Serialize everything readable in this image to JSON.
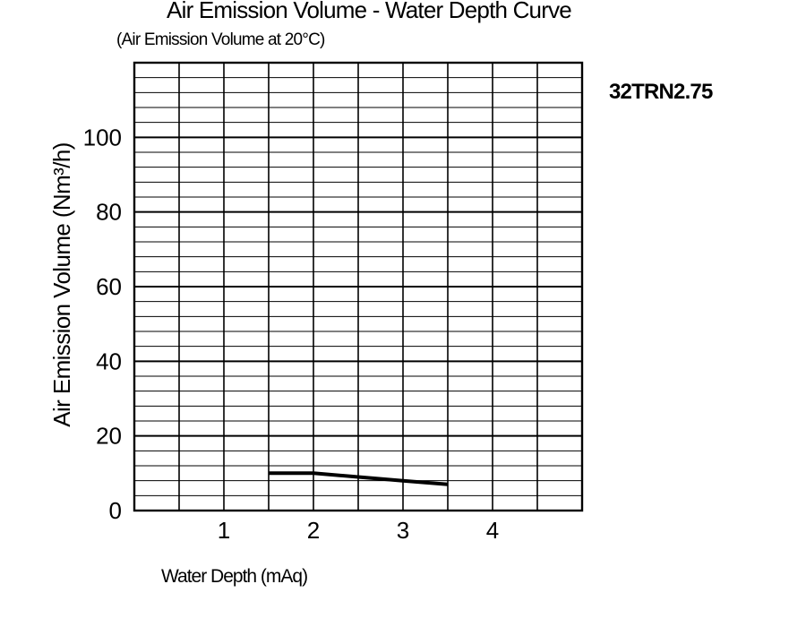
{
  "chart_data": {
    "type": "line",
    "title": "Air Emission Volume - Water Depth Curve",
    "subtitle": "(Air Emission Volume at 20°C)",
    "model_label": "32TRN2.75",
    "xlabel": "Water Depth (mAq)",
    "ylabel": "Air Emission Volume (Nm³/h)",
    "xlim": [
      0,
      5
    ],
    "ylim": [
      0,
      120
    ],
    "x_ticks": [
      1,
      2,
      3,
      4
    ],
    "y_ticks": [
      0,
      20,
      40,
      60,
      80,
      100
    ],
    "grid": true,
    "legend": "none",
    "series": [
      {
        "x": [
          1.5,
          2.0,
          2.5,
          3.0,
          3.5
        ],
        "y": [
          10,
          10,
          9,
          8,
          7
        ]
      }
    ]
  }
}
